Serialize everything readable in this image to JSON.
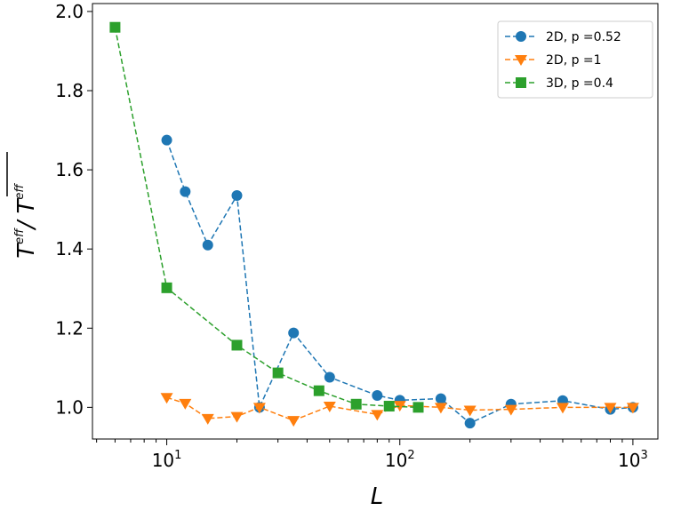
{
  "chart_data": {
    "type": "line",
    "title": "",
    "xlabel": "L",
    "ylabel": {
      "base": "T",
      "sup": "eff",
      "sep": "/ "
    },
    "xscale": "log",
    "xlim": [
      4.8,
      1280
    ],
    "ylim": [
      0.92,
      2.02
    ],
    "xticks": [
      {
        "base": "10",
        "exp": "1",
        "value": 10
      },
      {
        "base": "10",
        "exp": "2",
        "value": 100
      },
      {
        "base": "10",
        "exp": "3",
        "value": 1000
      }
    ],
    "yticks": [
      {
        "label": "1.0",
        "value": 1.0
      },
      {
        "label": "1.2",
        "value": 1.2
      },
      {
        "label": "1.4",
        "value": 1.4
      },
      {
        "label": "1.6",
        "value": 1.6
      },
      {
        "label": "1.8",
        "value": 1.8
      },
      {
        "label": "2.0",
        "value": 2.0
      }
    ],
    "legend_position": "top-right",
    "series": [
      {
        "name": "2D, p =0.52",
        "color": "#1f77b4",
        "marker": "circle",
        "x": [
          10,
          12,
          15,
          20,
          25,
          35,
          50,
          80,
          100,
          150,
          200,
          300,
          500,
          800,
          1000
        ],
        "y": [
          1.675,
          1.545,
          1.41,
          1.535,
          1.0,
          1.188,
          1.076,
          1.03,
          1.018,
          1.022,
          0.96,
          1.008,
          1.017,
          0.995,
          1.0
        ]
      },
      {
        "name": "2D, p =1",
        "color": "#ff7f0e",
        "marker": "triangle-down",
        "x": [
          10,
          12,
          15,
          20,
          25,
          35,
          50,
          80,
          100,
          150,
          200,
          300,
          500,
          800,
          1000
        ],
        "y": [
          1.025,
          1.01,
          0.972,
          0.977,
          1.0,
          0.967,
          1.003,
          0.982,
          1.005,
          1.0,
          0.993,
          0.995,
          1.0,
          1.0,
          1.0
        ]
      },
      {
        "name": "3D, p =0.4",
        "color": "#2ca02c",
        "marker": "square",
        "x": [
          6,
          10,
          20,
          30,
          45,
          65,
          90,
          120
        ],
        "y": [
          1.96,
          1.302,
          1.157,
          1.087,
          1.042,
          1.008,
          1.003,
          1.0
        ]
      }
    ]
  }
}
